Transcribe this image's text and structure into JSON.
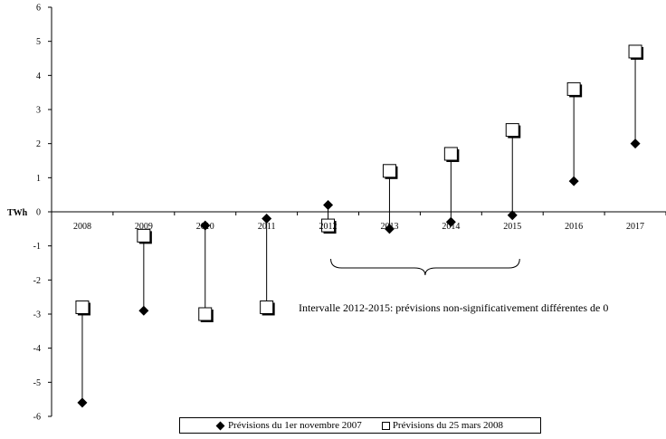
{
  "chart_data": {
    "type": "scatter",
    "ylabel": "TWh",
    "ylim": [
      -6,
      6
    ],
    "yticks": [
      "6",
      "5",
      "4",
      "3",
      "2",
      "1",
      "0",
      "-1",
      "-2",
      "-3",
      "-4",
      "-5",
      "-6"
    ],
    "categories": [
      "2008",
      "2009",
      "2010",
      "2011",
      "2012",
      "2013",
      "2014",
      "2015",
      "2016",
      "2017"
    ],
    "series": [
      {
        "name": "Prévisions du 1er novembre 2007",
        "marker": "diamond",
        "values": [
          -5.6,
          -2.9,
          -0.4,
          -0.2,
          0.2,
          -0.5,
          -0.3,
          -0.1,
          0.9,
          2.0
        ]
      },
      {
        "name": "Prévisions du 25 mars 2008",
        "marker": "square",
        "values": [
          -2.8,
          -0.7,
          -3.0,
          -2.8,
          -0.4,
          1.2,
          1.7,
          2.4,
          3.6,
          4.7
        ]
      }
    ],
    "annotation": "Intervalle 2012-2015: prévisions non-significativement différentes de 0",
    "bracket_range": [
      "2012",
      "2015"
    ],
    "grid": false,
    "legend_position": "bottom"
  }
}
